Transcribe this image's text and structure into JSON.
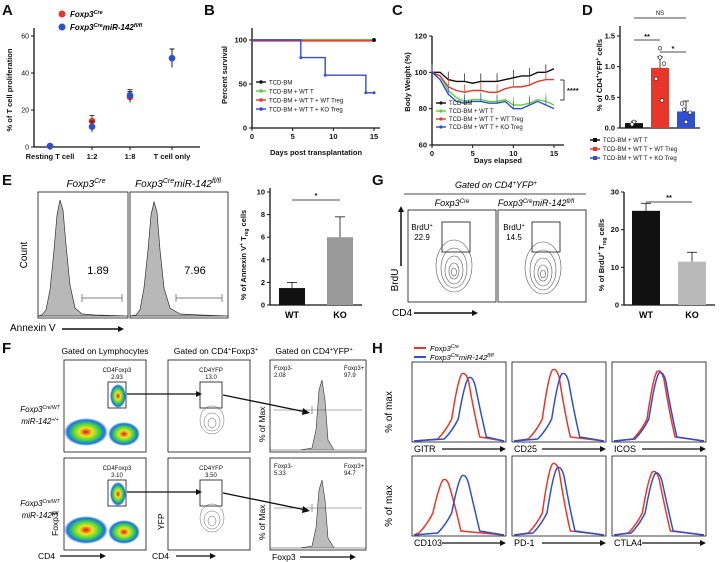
{
  "panels": [
    "A",
    "B",
    "C",
    "D",
    "E",
    "F",
    "G",
    "H"
  ],
  "colors": {
    "red": "#e8372a",
    "blue": "#2f4fd1",
    "green": "#5fd13a",
    "black": "#111111",
    "gray": "#999999",
    "lightgray": "#b9b9b9"
  },
  "panelA": {
    "ylabel": "% of T cell proliferation",
    "legend": [
      "Foxp3",
      "Foxp3",
      "miR-142"
    ],
    "legend_sup": [
      "Cre",
      "Cre",
      "fl/fl"
    ],
    "chart_data": {
      "type": "scatter",
      "categories": [
        "Resting T cell",
        "1:2",
        "1:8",
        "T cell only"
      ],
      "ylim": [
        0,
        60
      ],
      "yticks": [
        "0",
        "20",
        "40",
        "60"
      ],
      "series": [
        {
          "name": "Foxp3Cre",
          "color": "#e8372a",
          "values": [
            0.5,
            14,
            27,
            48
          ],
          "err": [
            0.5,
            3,
            3,
            5
          ]
        },
        {
          "name": "Foxp3CremiR-142fl/fl",
          "color": "#2f4fd1",
          "values": [
            0.5,
            11,
            28,
            48
          ],
          "err": [
            0.5,
            3,
            3,
            5
          ]
        }
      ]
    }
  },
  "panelB": {
    "ylabel": "Percent survival",
    "xlabel": "Days post transplantation",
    "legend": [
      "TCD-BM",
      "TCD-BM + WT T",
      "TCD-BM + WT T + WT Treg",
      "TCD-BM + WT T + KO Treg"
    ],
    "chart_data": {
      "type": "line",
      "xlim": [
        0,
        15
      ],
      "ylim": [
        0,
        100
      ],
      "xticks": [
        "0",
        "5",
        "10",
        "15"
      ],
      "yticks": [
        "0",
        "50",
        "100"
      ],
      "series": [
        {
          "name": "TCD-BM",
          "color": "#111111",
          "x": [
            0,
            15
          ],
          "y": [
            100,
            100
          ]
        },
        {
          "name": "TCD-BM + WT T",
          "color": "#5fd13a",
          "x": [
            0,
            15
          ],
          "y": [
            100,
            100
          ]
        },
        {
          "name": "TCD-BM + WT T + WT Treg",
          "color": "#e8372a",
          "x": [
            0,
            15
          ],
          "y": [
            99,
            99
          ]
        },
        {
          "name": "TCD-BM + WT T + KO Treg",
          "color": "#2f4fd1",
          "x": [
            0,
            6,
            6,
            9,
            9,
            14,
            14,
            15
          ],
          "y": [
            100,
            100,
            80,
            80,
            60,
            60,
            40,
            40
          ]
        }
      ]
    }
  },
  "panelC": {
    "ylabel": "Body Weight (%)",
    "xlabel": "Days elapsed",
    "legend": [
      "TCD-BM",
      "TCD-BM + WT T",
      "TCD-BM + WT T + WT Treg",
      "TCD-BM + WT T + KO Treg"
    ],
    "sig": "****",
    "chart_data": {
      "type": "line",
      "xlim": [
        0,
        15
      ],
      "ylim": [
        60,
        120
      ],
      "xticks": [
        "0",
        "5",
        "10",
        "15"
      ],
      "yticks": [
        "60",
        "80",
        "100",
        "120"
      ],
      "series": [
        {
          "name": "TCD-BM",
          "color": "#111111",
          "x": [
            0,
            1,
            2,
            3,
            4,
            5,
            6,
            7,
            8,
            9,
            10,
            11,
            12,
            13,
            14,
            15
          ],
          "y": [
            100,
            100,
            96,
            95,
            95,
            94,
            95,
            95,
            95,
            96,
            97,
            98,
            98,
            100,
            100,
            102
          ]
        },
        {
          "name": "TCD-BM + WT T",
          "color": "#5fd13a",
          "x": [
            0,
            1,
            2,
            3,
            4,
            5,
            6,
            7,
            8,
            9,
            10,
            11,
            12,
            13,
            14,
            15
          ],
          "y": [
            100,
            98,
            90,
            86,
            84,
            85,
            85,
            84,
            84,
            85,
            82,
            82,
            83,
            85,
            84,
            82
          ]
        },
        {
          "name": "TCD-BM + WT T + WT Treg",
          "color": "#e8372a",
          "x": [
            0,
            1,
            2,
            3,
            4,
            5,
            6,
            7,
            8,
            9,
            10,
            11,
            12,
            13,
            14,
            15
          ],
          "y": [
            100,
            98,
            92,
            90,
            89,
            90,
            90,
            89,
            89,
            91,
            92,
            92,
            93,
            95,
            96,
            96
          ]
        },
        {
          "name": "TCD-BM + WT T + KO Treg",
          "color": "#2f4fd1",
          "x": [
            0,
            1,
            2,
            3,
            4,
            5,
            6,
            7,
            8,
            9,
            10,
            11,
            12,
            13,
            14,
            15
          ],
          "y": [
            100,
            96,
            88,
            84,
            83,
            84,
            84,
            83,
            83,
            84,
            80,
            80,
            82,
            84,
            82,
            80
          ]
        }
      ]
    }
  },
  "panelD": {
    "ylabel": "% of CD4",
    "ylabel_sup": "+",
    "ylabel2": "YFP",
    "ylabel3": " cells",
    "sig_ns": "NS",
    "sig_1": "**",
    "sig_2": "*",
    "legend": [
      "TCD-BM + WT T",
      "TCD-BM + WT T + WT Treg",
      "TCD-BM + WT T + KO Treg"
    ],
    "chart_data": {
      "type": "bar",
      "ylim": [
        0,
        1.5
      ],
      "yticks": [
        "0.0",
        "0.5",
        "1.0",
        "1.5"
      ],
      "categories": [
        "TCD-BM + WT T",
        "TCD-BM + WT T + WT Treg",
        "TCD-BM + WT T + KO Treg"
      ],
      "colors": [
        "#111111",
        "#e8372a",
        "#2f4fd1"
      ],
      "values": [
        0.08,
        0.98,
        0.27
      ],
      "err": [
        0.03,
        0.18,
        0.17
      ]
    }
  },
  "panelE": {
    "titles": [
      "Foxp3",
      "Foxp3",
      "miR-142"
    ],
    "titles_sup": [
      "Cre",
      "Cre",
      "fl/fl"
    ],
    "ylabel": "Count",
    "xlabel": "Annexin V",
    "values": [
      "1.89",
      "7.96"
    ],
    "bar_ylabel": "% of Annexin V",
    "bar_ylabel_sup": "+",
    "bar_ylabel2": " T",
    "bar_ylabel_sub": "reg",
    "bar_ylabel3": " cells",
    "sig": "*",
    "chart_data": {
      "type": "bar",
      "categories": [
        "WT",
        "KO"
      ],
      "values": [
        1.5,
        6.0
      ],
      "err": [
        0.5,
        1.8
      ],
      "ylim": [
        0,
        10
      ],
      "yticks": [
        "0",
        "2",
        "4",
        "6",
        "8",
        "10"
      ],
      "colors": [
        "#111111",
        "#999999"
      ]
    }
  },
  "panelF": {
    "headers": [
      "Gated on Lymphocytes",
      "Gated on CD4",
      "Gated on CD4"
    ],
    "headers_sup": [
      "",
      "+",
      "+"
    ],
    "headers_tail": [
      "",
      "Foxp3",
      "YFP"
    ],
    "headers_sup2": [
      "",
      "+",
      "+"
    ],
    "rows": [
      {
        "label1": "Foxp3",
        "label1_sup": "Cre/WT",
        "label2": "miR-142",
        "label2_sup": "+/+",
        "gate1": "CD4Foxp3",
        "gate1_val": "2.93",
        "gate2": "CD4YFP",
        "gate2_val": "13.0",
        "neg": "Foxp3-",
        "neg_val": "2.08",
        "pos": "Foxp3+",
        "pos_val": "97.9"
      },
      {
        "label1": "Foxp3",
        "label1_sup": "Cre/WT",
        "label2": "miR-142",
        "label2_sup": "fl/fl",
        "gate1": "CD4Foxp3",
        "gate1_val": "3.10",
        "gate2": "CD4YFP",
        "gate2_val": "3.50",
        "neg": "Foxp3-",
        "neg_val": "5.33",
        "pos": "Foxp3+",
        "pos_val": "94.7"
      }
    ],
    "axes": {
      "y1": "Foxp3",
      "x1": "CD4",
      "y2": "YFP",
      "x2": "CD4",
      "y3": "% of Max",
      "x3": "Foxp3"
    }
  },
  "panelG": {
    "header": "Gated on CD4",
    "header_sup1": "+",
    "header_mid": "YFP",
    "header_sup2": "+",
    "titles": [
      "Foxp3",
      "Foxp3",
      "miR-142"
    ],
    "titles_sup": [
      "Cre",
      "Cre",
      "fl/fl"
    ],
    "gate_label": "BrdU",
    "gate_sup": "+",
    "values": [
      "22.9",
      "14.5"
    ],
    "ylabel": "BrdU",
    "xlabel": "CD4",
    "bar_ylabel": "% of BrdU",
    "bar_ylabel_sup": "+",
    "bar_ylabel2": " T",
    "bar_ylabel_sub": "reg",
    "bar_ylabel3": " cells",
    "sig": "**",
    "chart_data": {
      "type": "bar",
      "categories": [
        "WT",
        "KO"
      ],
      "values": [
        25,
        11.5
      ],
      "err": [
        2,
        2.5
      ],
      "ylim": [
        0,
        30
      ],
      "yticks": [
        "0",
        "10",
        "20",
        "30"
      ],
      "colors": [
        "#111111",
        "#b9b9b9"
      ]
    }
  },
  "panelH": {
    "legend": [
      "Foxp3",
      "Foxp3",
      "miR-142"
    ],
    "legend_sup": [
      "Cre",
      "Cre",
      "fl/fl"
    ],
    "ylabel": "% of max",
    "markers": [
      "GITR",
      "CD25",
      "ICOS",
      "CD103",
      "PD-1",
      "CTLA4"
    ]
  }
}
